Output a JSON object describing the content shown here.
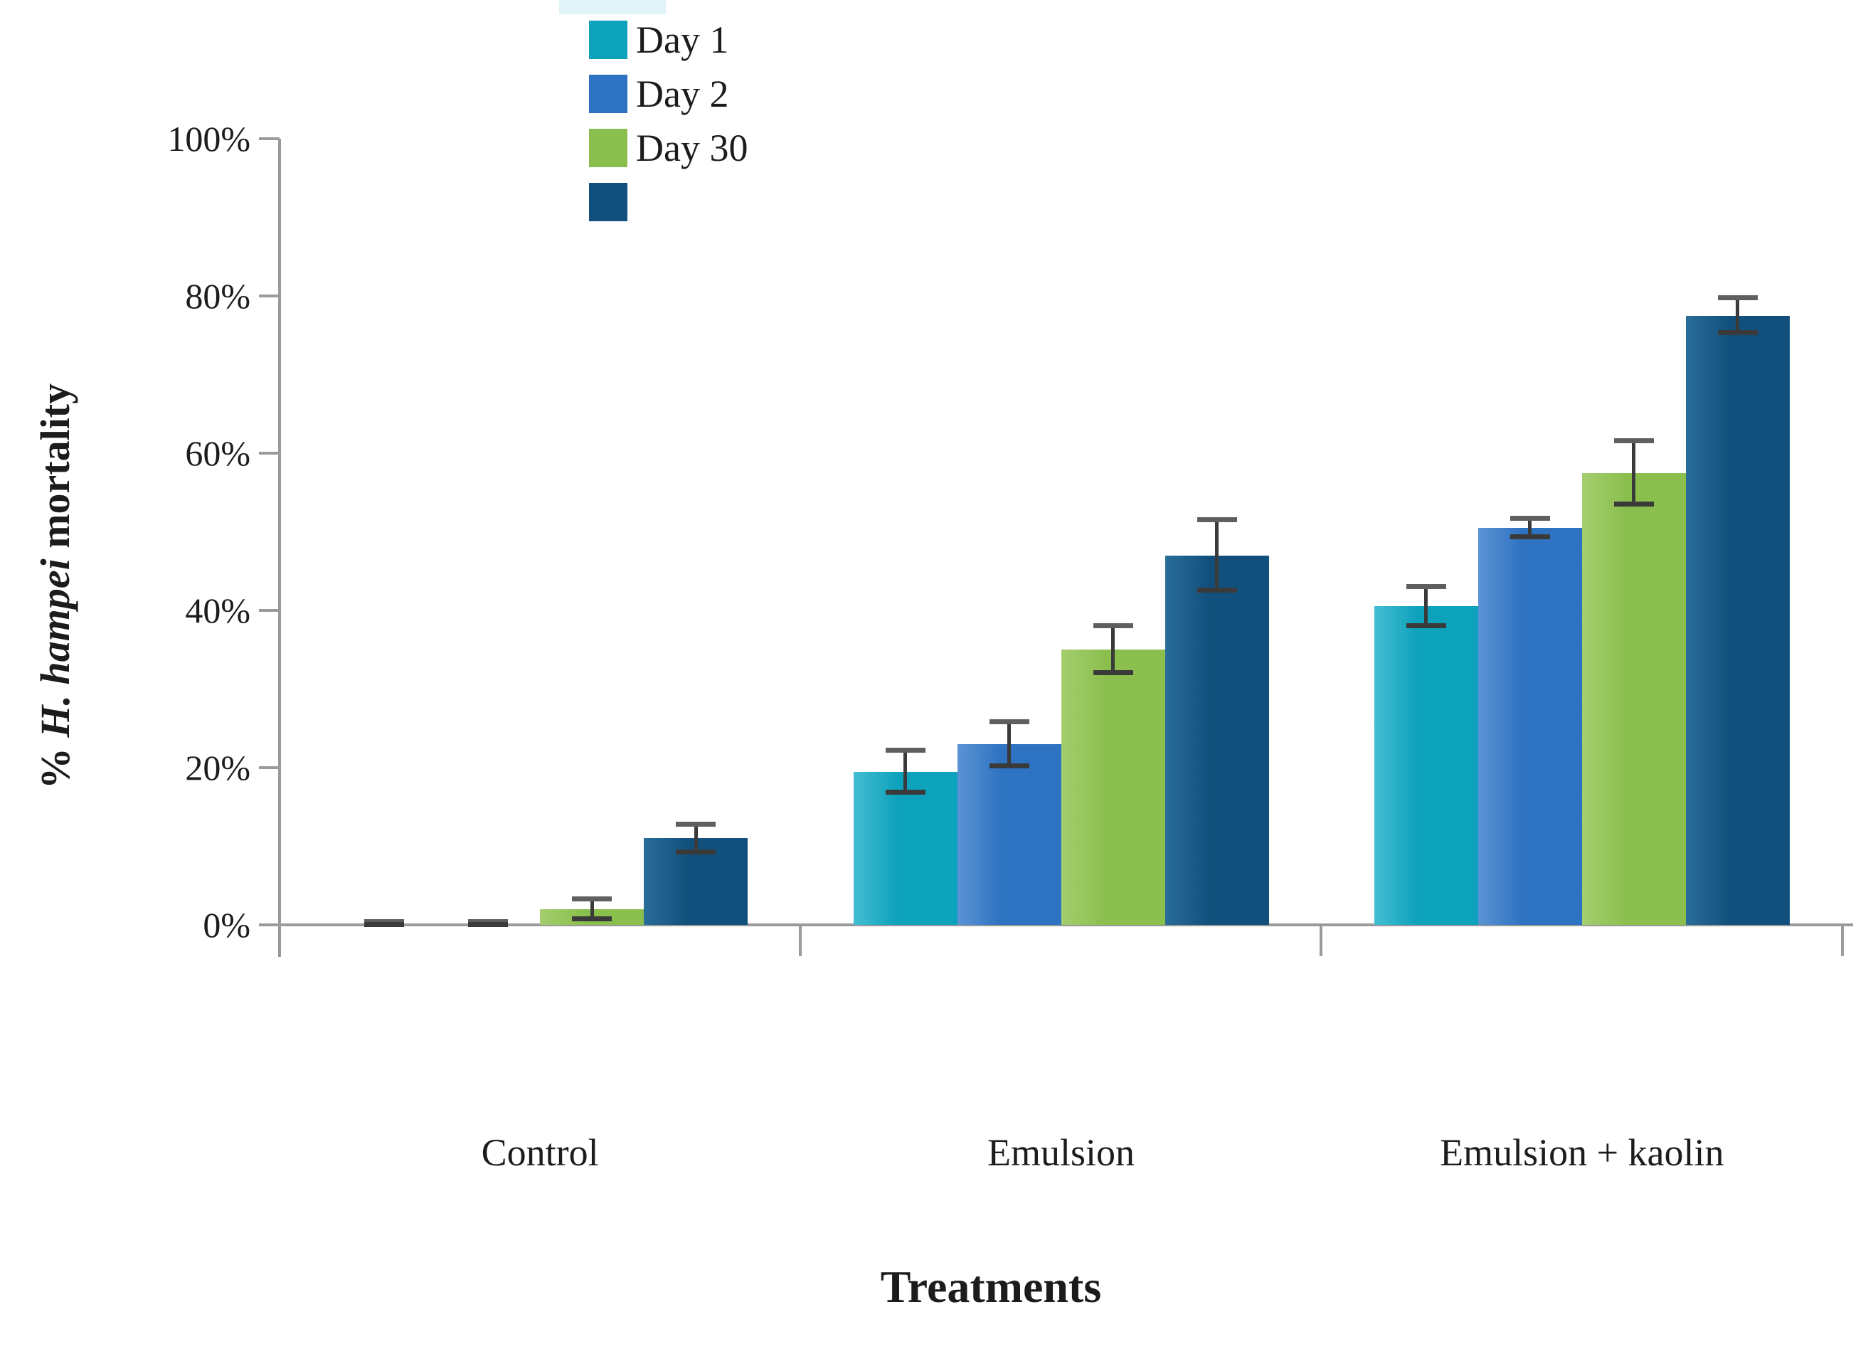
{
  "figure": {
    "y_title_prefix": "% ",
    "y_title_species": "H. hampei",
    "y_title_suffix": " mortality",
    "x_title": "Treatments"
  },
  "legend": {
    "items": [
      {
        "label": "Day 1",
        "color": "#0da2bc"
      },
      {
        "label": "Day 2",
        "color": "#2e73c1"
      },
      {
        "label": "Day 30",
        "color": "#8abf4e"
      },
      {
        "label": "",
        "color": "#11507c"
      }
    ]
  },
  "chart_data": {
    "type": "bar",
    "title": "",
    "xlabel": "Treatments",
    "ylabel": "% H. hampei mortality",
    "categories": [
      "Control",
      "Emulsion",
      "Emulsion + kaolin"
    ],
    "y_ticks": [
      {
        "label": "0%",
        "value": 0
      },
      {
        "label": "20%",
        "value": 20
      },
      {
        "label": "40%",
        "value": 40
      },
      {
        "label": "60%",
        "value": 60
      },
      {
        "label": "80%",
        "value": 80
      },
      {
        "label": "100%",
        "value": 100
      }
    ],
    "ylim": [
      0,
      100
    ],
    "grid": false,
    "error_bars": true,
    "legend_position": "top-center",
    "series": [
      {
        "name": "Day 1",
        "color": "#0da2bc",
        "color_light": "#45bdd2",
        "values": [
          0,
          19.5,
          40.5
        ],
        "errors": [
          0.4,
          2.7,
          2.5
        ]
      },
      {
        "name": "Day 2",
        "color": "#2e73c1",
        "color_light": "#5b93d4",
        "values": [
          0,
          23,
          50.5
        ],
        "errors": [
          0.4,
          2.8,
          1.2
        ]
      },
      {
        "name": "Day 30",
        "color": "#8abf4e",
        "color_light": "#a5ce6e",
        "values": [
          2,
          35,
          57.5
        ],
        "errors": [
          1.3,
          3,
          4
        ]
      },
      {
        "name": "",
        "color": "#11507c",
        "color_light": "#2a6d99",
        "values": [
          11,
          47,
          77.5
        ],
        "errors": [
          1.8,
          4.5,
          2.2
        ]
      }
    ],
    "colors": {
      "axis": "#9a9a9a",
      "error_bar": "#3a3a3a",
      "text": "#1c1c1c"
    }
  }
}
